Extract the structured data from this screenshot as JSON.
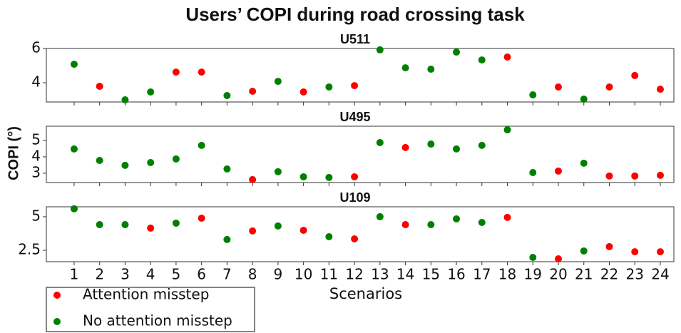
{
  "title": "Users’ COPI during road crossing task",
  "ylabel": "COPI (°)",
  "xlabel": "Scenarios",
  "chart_data": [
    {
      "type": "scatter",
      "title": "U511",
      "ylim": [
        2.875,
        6
      ],
      "yticks": [
        4,
        6
      ],
      "series": [
        {
          "name": "Attention misstep",
          "color": "#ff0000",
          "values": [
            null,
            3.79,
            null,
            null,
            4.62,
            4.62,
            null,
            3.5,
            null,
            3.46,
            null,
            3.83,
            null,
            null,
            null,
            null,
            null,
            5.5,
            null,
            3.75,
            null,
            3.75,
            4.42,
            3.62
          ]
        },
        {
          "name": "No attention misstep",
          "color": "#008000",
          "values": [
            5.08,
            null,
            3.0,
            3.46,
            null,
            null,
            3.25,
            null,
            4.08,
            null,
            3.75,
            null,
            5.92,
            4.87,
            4.79,
            5.79,
            5.33,
            null,
            3.29,
            null,
            3.04,
            null,
            null,
            null
          ]
        }
      ]
    },
    {
      "type": "scatter",
      "title": "U495",
      "ylim": [
        2.43,
        5.87
      ],
      "yticks": [
        3,
        4,
        5
      ],
      "series": [
        {
          "name": "Attention misstep",
          "color": "#ff0000",
          "values": [
            null,
            null,
            null,
            null,
            null,
            null,
            null,
            2.61,
            null,
            null,
            null,
            2.78,
            null,
            4.57,
            null,
            null,
            null,
            null,
            null,
            3.13,
            null,
            2.83,
            2.83,
            2.87
          ]
        },
        {
          "name": "No attention misstep",
          "color": "#008000",
          "values": [
            4.48,
            3.78,
            3.48,
            3.65,
            3.87,
            4.7,
            3.26,
            null,
            3.09,
            2.78,
            2.74,
            null,
            4.87,
            null,
            4.78,
            4.48,
            4.7,
            5.65,
            3.04,
            null,
            3.61,
            null,
            null,
            null
          ]
        }
      ]
    },
    {
      "type": "scatter",
      "title": "U109",
      "ylim": [
        1.65,
        5.74
      ],
      "yticks": [
        2.5,
        5
      ],
      "categories": [
        "1",
        "2",
        "3",
        "4",
        "5",
        "6",
        "7",
        "8",
        "9",
        "10",
        "11",
        "12",
        "13",
        "14",
        "15",
        "16",
        "17",
        "18",
        "19",
        "20",
        "21",
        "22",
        "23",
        "24"
      ],
      "series": [
        {
          "name": "Attention misstep",
          "color": "#ff0000",
          "values": [
            null,
            null,
            null,
            4.15,
            null,
            4.89,
            null,
            3.94,
            null,
            3.99,
            null,
            3.35,
            null,
            4.41,
            null,
            null,
            null,
            4.95,
            null,
            1.86,
            null,
            2.77,
            2.39,
            2.39
          ]
        },
        {
          "name": "No attention misstep",
          "color": "#008000",
          "values": [
            5.59,
            4.41,
            4.41,
            null,
            4.52,
            null,
            3.3,
            null,
            4.31,
            null,
            3.51,
            null,
            5.0,
            null,
            4.41,
            4.84,
            4.57,
            null,
            1.97,
            null,
            2.45,
            null,
            null,
            null
          ]
        }
      ]
    }
  ]
}
